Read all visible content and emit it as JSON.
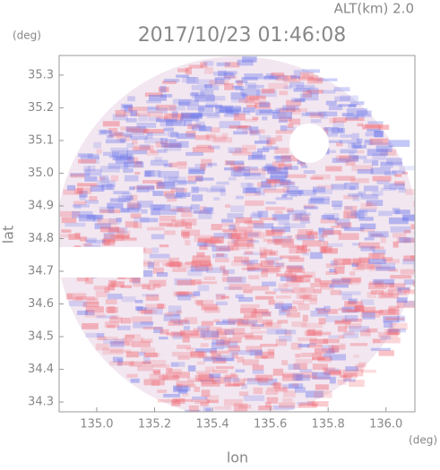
{
  "chart_data": {
    "type": "radar-ppi",
    "title": "2017/10/23 01:46:08",
    "annotation": "ALT(km) 2.0",
    "x_label": "lon",
    "x_unit": "(deg)",
    "y_label": "lat",
    "y_unit": "(deg)",
    "xlim": [
      134.87,
      136.1
    ],
    "ylim": [
      34.27,
      35.36
    ],
    "xticks": [
      {
        "value": 135,
        "label": "135.0"
      },
      135.2,
      135.4,
      135.6,
      135.8,
      {
        "value": 136,
        "label": "136.0"
      }
    ],
    "yticks": [
      34.3,
      34.4,
      34.5,
      34.6,
      34.7,
      34.8,
      34.9,
      {
        "value": 35,
        "label": "35.0"
      },
      35.1,
      35.2,
      35.3
    ]
  }
}
